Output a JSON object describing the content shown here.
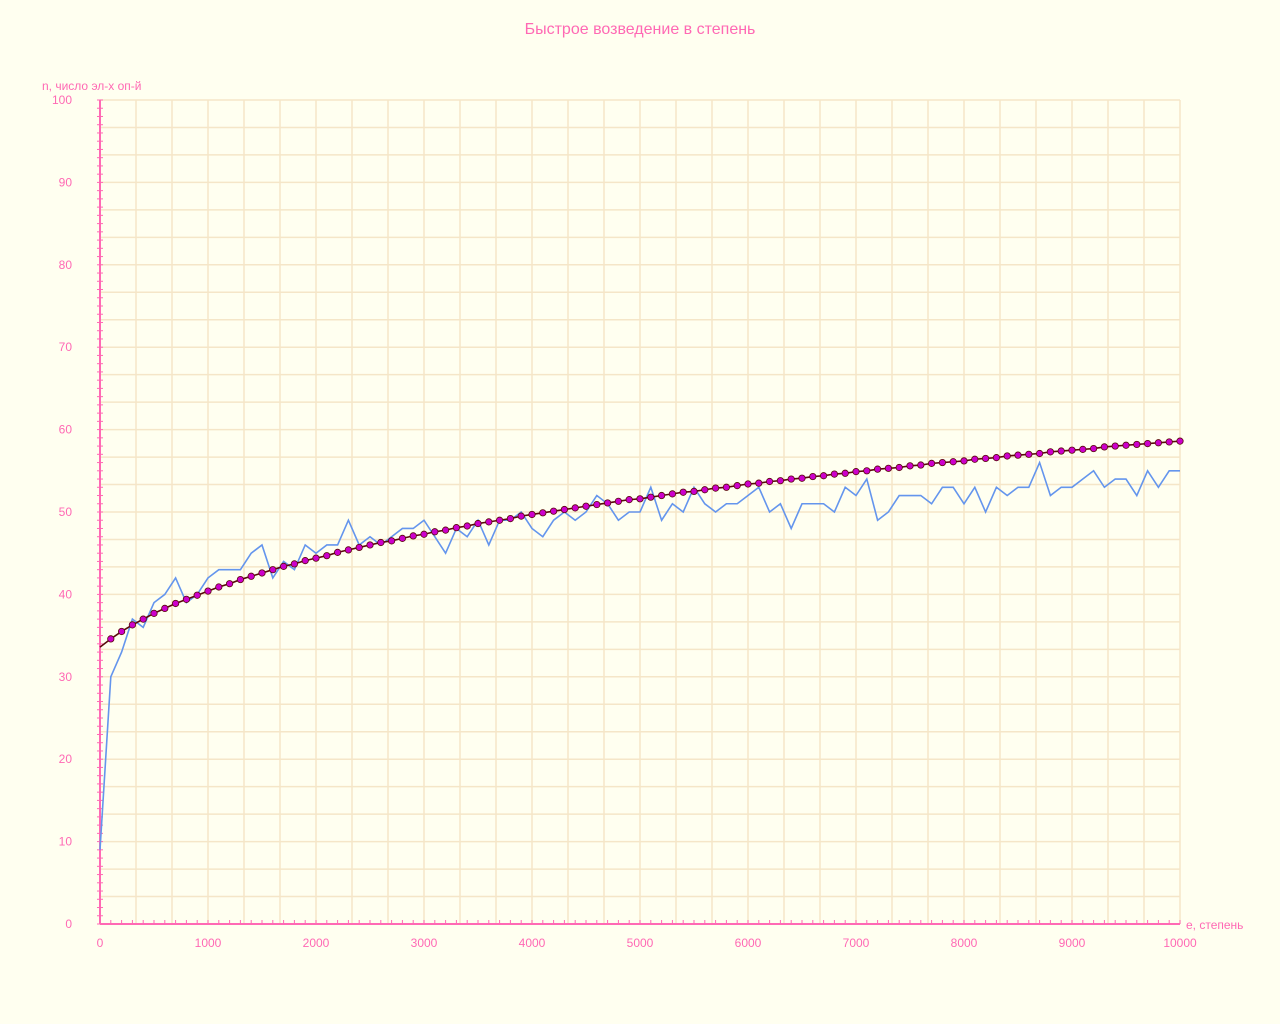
{
  "chart_data": {
    "type": "line",
    "title": "Быстрое возведение в степень",
    "xlabel": "e, степень",
    "ylabel": "n, число эл-х оп-й",
    "xlim": [
      0,
      10000
    ],
    "ylim": [
      0,
      100
    ],
    "x_ticks": [
      0,
      1000,
      2000,
      3000,
      4000,
      5000,
      6000,
      7000,
      8000,
      9000,
      10000
    ],
    "y_ticks": [
      0,
      10,
      20,
      30,
      40,
      50,
      60,
      70,
      80,
      90,
      100
    ],
    "grid": true,
    "colors": {
      "background": "#fffff0",
      "grid": "#f5e6c8",
      "axis": "#ff69b4",
      "text": "#ff69b4",
      "measured": "#6495ed",
      "fit_line": "#5a0a0a",
      "fit_markers": "#cc00cc"
    },
    "series": [
      {
        "style": "measured",
        "x": [
          0,
          100,
          200,
          300,
          400,
          500,
          600,
          700,
          800,
          900,
          1000,
          1100,
          1200,
          1300,
          1400,
          1500,
          1600,
          1700,
          1800,
          1900,
          2000,
          2100,
          2200,
          2300,
          2400,
          2500,
          2600,
          2700,
          2800,
          2900,
          3000,
          3100,
          3200,
          3300,
          3400,
          3500,
          3600,
          3700,
          3800,
          3900,
          4000,
          4100,
          4200,
          4300,
          4400,
          4500,
          4600,
          4700,
          4800,
          4900,
          5000,
          5100,
          5200,
          5300,
          5400,
          5500,
          5600,
          5700,
          5800,
          5900,
          6000,
          6100,
          6200,
          6300,
          6400,
          6500,
          6600,
          6700,
          6800,
          6900,
          7000,
          7100,
          7200,
          7300,
          7400,
          7500,
          7600,
          7700,
          7800,
          7900,
          8000,
          8100,
          8200,
          8300,
          8400,
          8500,
          8600,
          8700,
          8800,
          8900,
          9000,
          9100,
          9200,
          9300,
          9400,
          9500,
          9600,
          9700,
          9800,
          9900,
          10000
        ],
        "y": [
          9,
          30,
          33,
          37,
          36,
          39,
          40,
          42,
          39,
          40,
          42,
          43,
          43,
          43,
          45,
          46,
          42,
          44,
          43,
          46,
          45,
          46,
          46,
          49,
          46,
          47,
          46,
          47,
          48,
          48,
          49,
          47,
          45,
          48,
          47,
          49,
          46,
          49,
          49,
          50,
          48,
          47,
          49,
          50,
          49,
          50,
          52,
          51,
          49,
          50,
          50,
          53,
          49,
          51,
          50,
          53,
          51,
          50,
          51,
          51,
          52,
          53,
          50,
          51,
          48,
          51,
          51,
          51,
          50,
          53,
          52,
          54,
          49,
          50,
          52,
          52,
          52,
          51,
          53,
          53,
          51,
          53,
          50,
          53,
          52,
          53,
          53,
          56,
          52,
          53,
          53,
          54,
          55,
          53,
          54,
          54,
          52,
          55,
          53,
          55,
          55
        ]
      },
      {
        "style": "fit",
        "x": [
          0,
          100,
          200,
          300,
          400,
          500,
          600,
          700,
          800,
          900,
          1000,
          1100,
          1200,
          1300,
          1400,
          1500,
          1600,
          1700,
          1800,
          1900,
          2000,
          2100,
          2200,
          2300,
          2400,
          2500,
          2600,
          2700,
          2800,
          2900,
          3000,
          3100,
          3200,
          3300,
          3400,
          3500,
          3600,
          3700,
          3800,
          3900,
          4000,
          4100,
          4200,
          4300,
          4400,
          4500,
          4600,
          4700,
          4800,
          4900,
          5000,
          5100,
          5200,
          5300,
          5400,
          5500,
          5600,
          5700,
          5800,
          5900,
          6000,
          6100,
          6200,
          6300,
          6400,
          6500,
          6600,
          6700,
          6800,
          6900,
          7000,
          7100,
          7200,
          7300,
          7400,
          7500,
          7600,
          7700,
          7800,
          7900,
          8000,
          8100,
          8200,
          8300,
          8400,
          8500,
          8600,
          8700,
          8800,
          8900,
          9000,
          9100,
          9200,
          9300,
          9400,
          9500,
          9600,
          9700,
          9800,
          9900,
          10000
        ],
        "y": [
          33.6,
          34.6,
          35.5,
          36.3,
          37.0,
          37.7,
          38.3,
          38.9,
          39.4,
          39.9,
          40.4,
          40.9,
          41.3,
          41.8,
          42.2,
          42.6,
          43.0,
          43.4,
          43.7,
          44.1,
          44.4,
          44.7,
          45.1,
          45.4,
          45.7,
          46.0,
          46.3,
          46.5,
          46.8,
          47.1,
          47.3,
          47.6,
          47.8,
          48.1,
          48.3,
          48.6,
          48.8,
          49.0,
          49.2,
          49.5,
          49.7,
          49.9,
          50.1,
          50.3,
          50.5,
          50.7,
          50.9,
          51.1,
          51.3,
          51.5,
          51.6,
          51.8,
          52.0,
          52.2,
          52.4,
          52.5,
          52.7,
          52.9,
          53.0,
          53.2,
          53.4,
          53.5,
          53.7,
          53.8,
          54.0,
          54.1,
          54.3,
          54.4,
          54.6,
          54.7,
          54.9,
          55.0,
          55.2,
          55.3,
          55.4,
          55.6,
          55.7,
          55.9,
          56.0,
          56.1,
          56.2,
          56.4,
          56.5,
          56.6,
          56.8,
          56.9,
          57.0,
          57.1,
          57.3,
          57.4,
          57.5,
          57.6,
          57.7,
          57.9,
          58.0,
          58.1,
          58.2,
          58.3,
          58.4,
          58.5,
          58.6
        ]
      }
    ]
  }
}
